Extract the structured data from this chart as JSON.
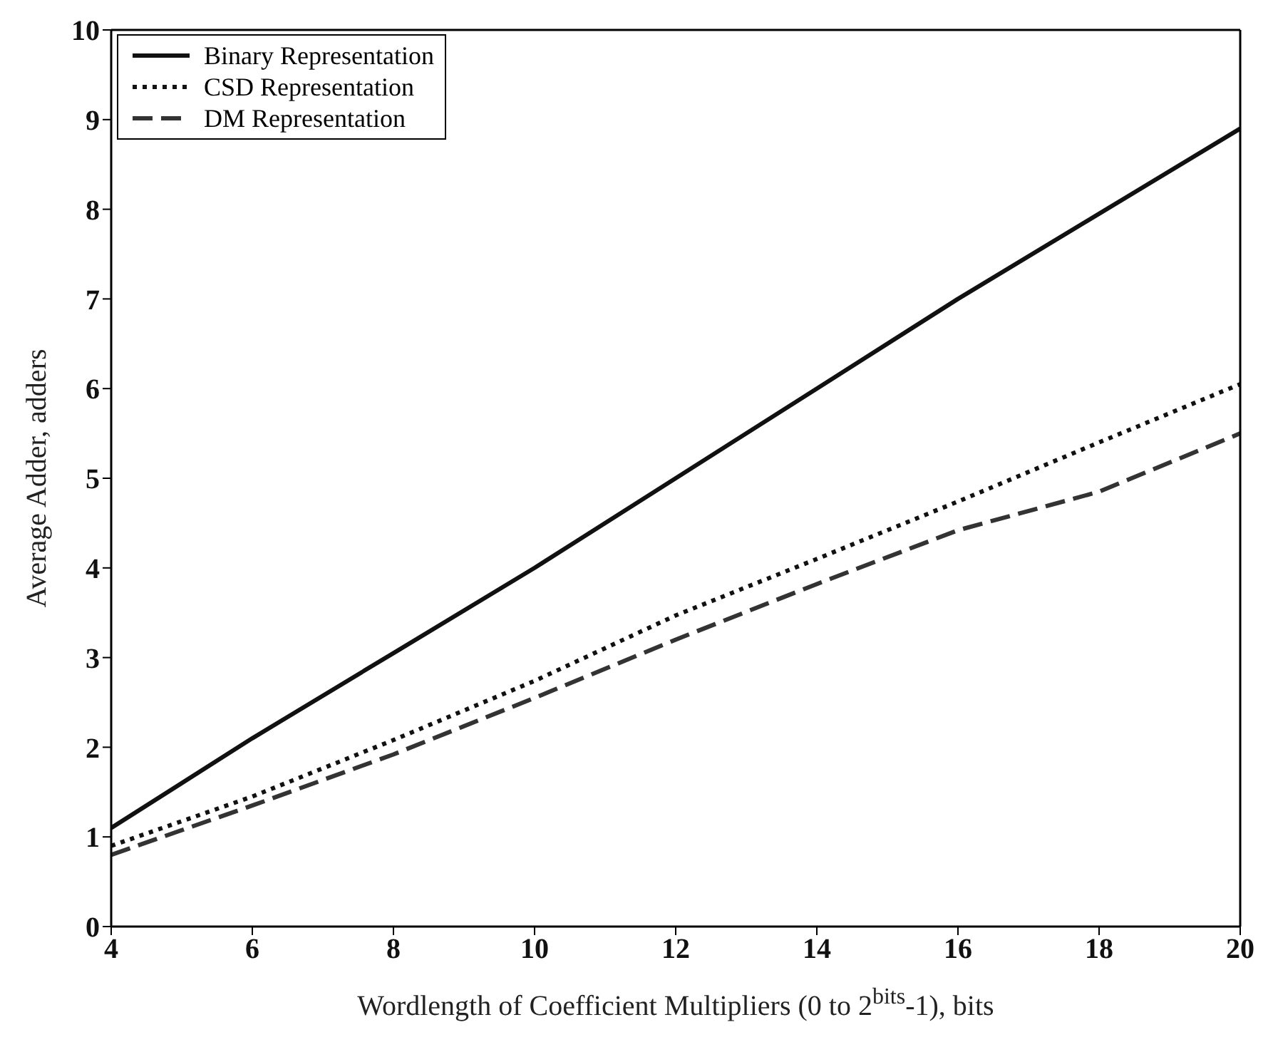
{
  "chart_data": {
    "type": "line",
    "xlabel": "Wordlength of Coefficient Multipliers (0 to 2$^{bits}$-1), bits",
    "ylabel": "Average Adder, adders",
    "x": [
      4,
      6,
      8,
      10,
      12,
      14,
      16,
      18,
      20
    ],
    "series": [
      {
        "name": "Binary Representation",
        "color": "#111111",
        "line_style": "solid",
        "values": [
          1.1,
          2.1,
          3.05,
          4.0,
          5.0,
          6.0,
          7.0,
          7.95,
          8.9
        ]
      },
      {
        "name": "CSD Representation",
        "color": "#111111",
        "line_style": "dotted",
        "values": [
          0.9,
          1.45,
          2.08,
          2.74,
          3.47,
          4.1,
          4.74,
          5.4,
          6.05
        ]
      },
      {
        "name": "DM Representation",
        "color": "#333333",
        "line_style": "dashed",
        "values": [
          0.8,
          1.35,
          1.92,
          2.55,
          3.2,
          3.82,
          4.42,
          4.85,
          5.5
        ]
      }
    ],
    "xlim": [
      4,
      20
    ],
    "xticks": [
      4,
      6,
      8,
      10,
      12,
      14,
      16,
      18,
      20
    ],
    "ylim": [
      0,
      10
    ],
    "yticks": [
      0,
      1,
      2,
      3,
      4,
      5,
      6,
      7,
      8,
      9,
      10
    ],
    "grid": false,
    "legend": "top left",
    "marker": "none"
  }
}
